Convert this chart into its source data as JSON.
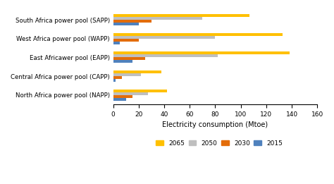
{
  "categories": [
    "South Africa power pool (SAPP)",
    "West Africa power pool (WAPP)",
    "East Africawer pool (EAPP)",
    "Central Africa power pool (CAPP)",
    "North Africa power pool (NAPP)"
  ],
  "years": [
    "2065",
    "2050",
    "2030",
    "2015"
  ],
  "values": {
    "2065": [
      107,
      133,
      138,
      38,
      42
    ],
    "2050": [
      70,
      80,
      82,
      22,
      27
    ],
    "2030": [
      30,
      20,
      25,
      7,
      15
    ],
    "2015": [
      20,
      5,
      15,
      2,
      10
    ]
  },
  "colors": {
    "2065": "#FFC000",
    "2050": "#BFBFBF",
    "2030": "#E36C09",
    "2015": "#4F81BD"
  },
  "xlabel": "Electricity consumption (Mtoe)",
  "xlim": [
    0,
    160
  ],
  "xticks": [
    0,
    20,
    40,
    60,
    80,
    100,
    120,
    140,
    160
  ],
  "background_color": "#ffffff",
  "bar_height": 0.15
}
